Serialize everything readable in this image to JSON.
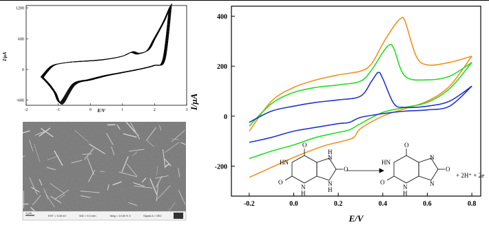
{
  "chart_data": [
    {
      "type": "line",
      "panel": "inset-cycles",
      "xlabel": "E/V",
      "ylabel": "I/μA",
      "xlim": [
        -2,
        3
      ],
      "ylim": [
        -700,
        1250
      ],
      "x_ticks": [
        "-2",
        "-1",
        "0",
        "1",
        "2",
        "3"
      ],
      "y_ticks": [
        "1200",
        "600",
        "0",
        "-600"
      ],
      "cycles": 8,
      "series": [
        {
          "x": [
            -1.5,
            -1.2,
            -0.9,
            -0.5,
            0,
            0.5,
            1.0,
            1.3,
            1.5,
            1.8,
            2.0,
            2.3,
            2.5
          ],
          "y": [
            -150,
            60,
            120,
            150,
            170,
            200,
            260,
            340,
            310,
            380,
            600,
            950,
            1250
          ]
        },
        {
          "x": [
            2.5,
            2.3,
            2.0,
            1.5,
            1.0,
            0.5,
            0.0,
            -0.5,
            -0.9,
            -1.1,
            -1.3,
            -1.5
          ],
          "y": [
            1250,
            200,
            80,
            0,
            -60,
            -120,
            -200,
            -290,
            -660,
            -450,
            -280,
            -150
          ]
        }
      ],
      "color": "#000000"
    },
    {
      "type": "line",
      "panel": "main",
      "xlabel": "E/V",
      "ylabel": "I/μA",
      "xlim": [
        -0.28,
        0.84
      ],
      "ylim": [
        -320,
        440
      ],
      "x_ticks": [
        "-0.2",
        "0.0",
        "0.2",
        "0.4",
        "0.6",
        "0.8"
      ],
      "y_ticks": [
        "400",
        "200",
        "0",
        "-200"
      ],
      "grid": false,
      "series": [
        {
          "color": "#f4901e",
          "forward": {
            "x": [
              -0.2,
              -0.1,
              0.0,
              0.1,
              0.2,
              0.3,
              0.35,
              0.4,
              0.45,
              0.48,
              0.5,
              0.55,
              0.6,
              0.7,
              0.8
            ],
            "y": [
              -60,
              60,
              115,
              145,
              165,
              180,
              210,
              290,
              360,
              390,
              380,
              240,
              205,
              215,
              240
            ]
          },
          "reverse": {
            "x": [
              0.8,
              0.7,
              0.6,
              0.5,
              0.4,
              0.3,
              0.27,
              0.22,
              0.15,
              0.1,
              0.0,
              -0.1,
              -0.2
            ],
            "y": [
              240,
              120,
              60,
              30,
              0,
              -50,
              -85,
              -100,
              -115,
              -130,
              -165,
              -205,
              -245
            ]
          }
        },
        {
          "color": "#22dd22",
          "forward": {
            "x": [
              -0.2,
              -0.1,
              0.0,
              0.1,
              0.2,
              0.3,
              0.35,
              0.4,
              0.43,
              0.45,
              0.5,
              0.6,
              0.7,
              0.8
            ],
            "y": [
              -40,
              50,
              95,
              115,
              125,
              140,
              185,
              255,
              285,
              270,
              160,
              145,
              160,
              215
            ]
          },
          "reverse": {
            "x": [
              0.8,
              0.7,
              0.6,
              0.5,
              0.4,
              0.3,
              0.25,
              0.2,
              0.1,
              0.0,
              -0.1,
              -0.2
            ],
            "y": [
              215,
              110,
              55,
              35,
              15,
              -30,
              -55,
              -65,
              -85,
              -115,
              -140,
              -170
            ]
          }
        },
        {
          "color": "#2233cc",
          "forward": {
            "x": [
              -0.2,
              -0.1,
              0.0,
              0.1,
              0.2,
              0.3,
              0.35,
              0.38,
              0.4,
              0.45,
              0.5,
              0.6,
              0.7,
              0.8
            ],
            "y": [
              -25,
              20,
              40,
              55,
              65,
              80,
              140,
              175,
              150,
              50,
              35,
              40,
              60,
              120
            ]
          },
          "reverse": {
            "x": [
              0.8,
              0.7,
              0.6,
              0.5,
              0.4,
              0.3,
              0.25,
              0.2,
              0.1,
              0.0,
              -0.1,
              -0.2
            ],
            "y": [
              120,
              40,
              25,
              20,
              10,
              -5,
              -25,
              -30,
              -45,
              -60,
              -85,
              -105
            ]
          }
        }
      ]
    }
  ],
  "reaction": {
    "reactant_atoms": [
      "O",
      "HN",
      "O",
      "N",
      "H",
      "H",
      "N",
      "O",
      "N",
      "H"
    ],
    "product_atoms": [
      "O",
      "HN",
      "O",
      "N",
      "H",
      "N",
      "O",
      "N"
    ],
    "suffix": "+ 2H⁺ + 2e"
  },
  "sem_image": {
    "scale_label": "1 μm",
    "info": [
      "EHT = 5.00 kV",
      "WD = 9.3 mm",
      "Mag = 10.00 K X",
      "Signal A = SE2"
    ]
  }
}
